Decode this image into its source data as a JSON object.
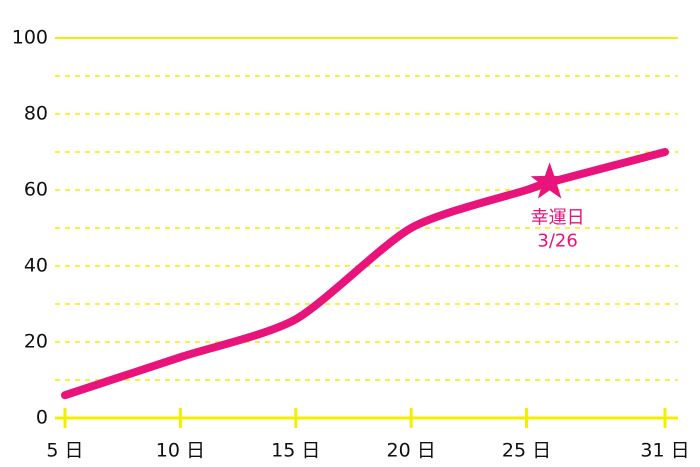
{
  "chart_data": {
    "type": "line",
    "x": [
      5,
      10,
      15,
      20,
      25,
      26,
      31
    ],
    "series": [
      {
        "color": "#e8137b",
        "values": [
          6,
          16,
          26,
          50,
          60,
          62,
          70
        ]
      }
    ],
    "xlim": [
      5,
      31
    ],
    "xticks": [
      {
        "value": 5,
        "label": "5 日"
      },
      {
        "value": 10,
        "label": "10 日"
      },
      {
        "value": 15,
        "label": "15 日"
      },
      {
        "value": 20,
        "label": "20 日"
      },
      {
        "value": 25,
        "label": "25 日"
      },
      {
        "value": 31,
        "label": "31 日"
      }
    ],
    "ylim": [
      0,
      100
    ],
    "yticks": [
      0,
      20,
      40,
      60,
      80,
      100
    ],
    "minor_yticks": [
      10,
      30,
      50,
      70,
      90
    ],
    "grid": true,
    "grid_color": "#f2f000",
    "annotation": {
      "x": 26,
      "value": 62,
      "title": "幸運日",
      "date": "3/26"
    }
  }
}
